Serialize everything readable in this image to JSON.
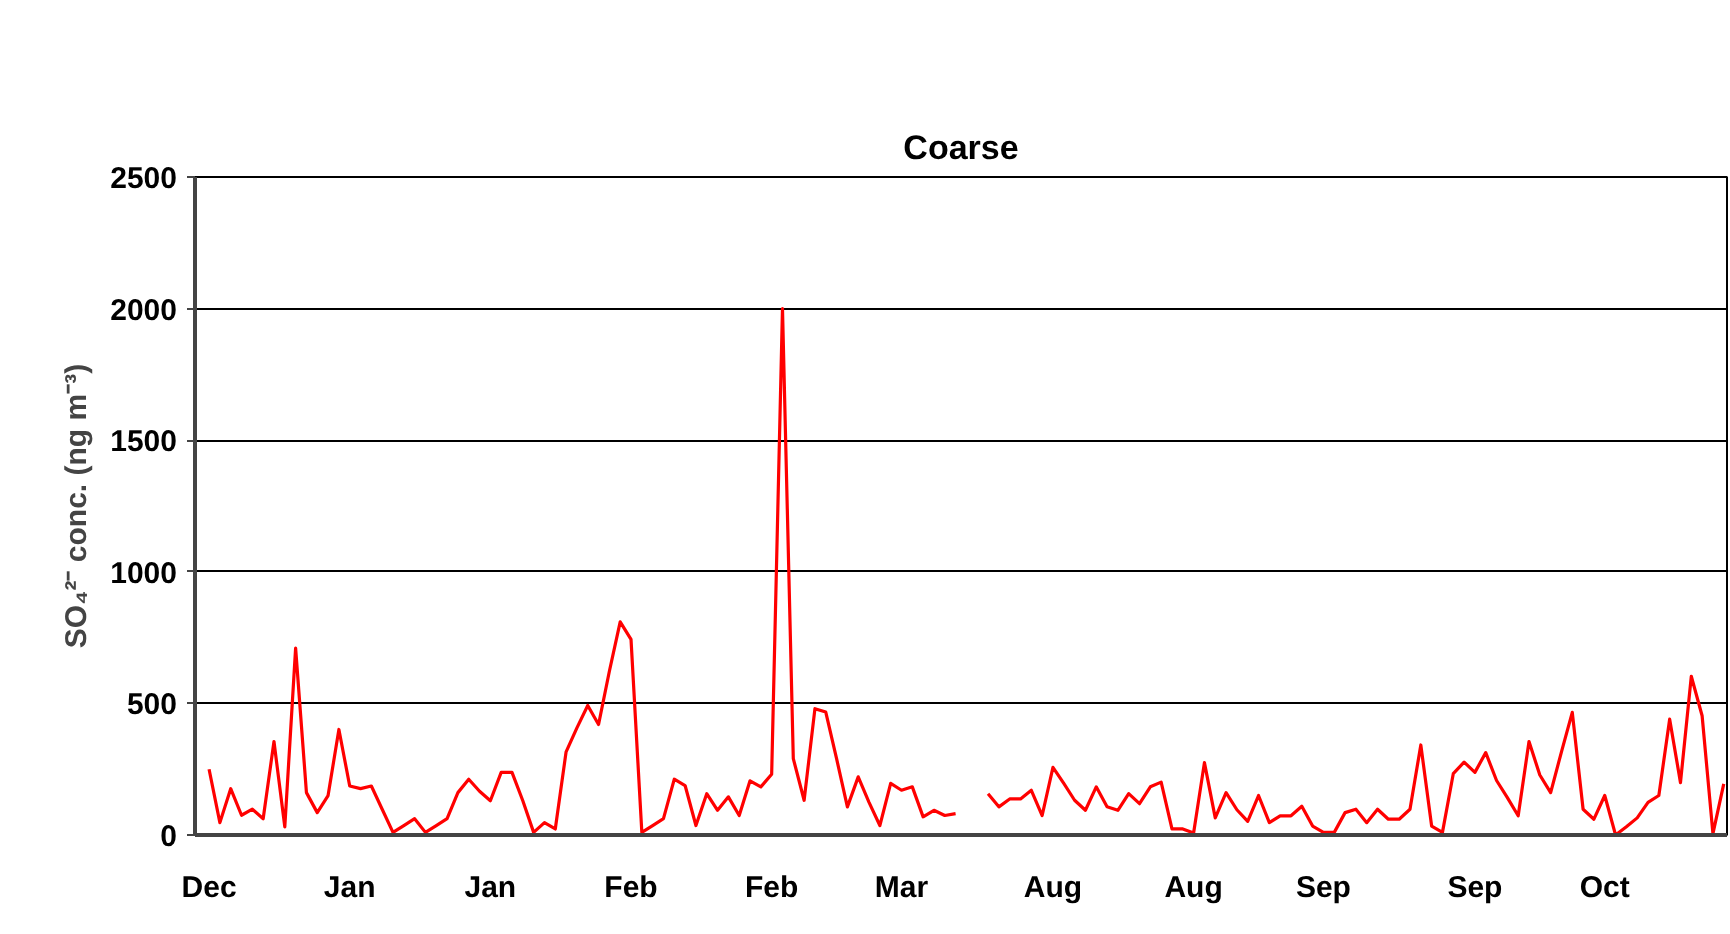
{
  "chart_data": {
    "type": "line",
    "title": "Coarse",
    "ylabel": "SO₄²⁻ conc. (ng m⁻³)",
    "categories": [
      "Dec",
      null,
      null,
      null,
      null,
      null,
      null,
      null,
      null,
      null,
      null,
      null,
      null,
      "Jan",
      null,
      null,
      null,
      null,
      null,
      null,
      null,
      null,
      null,
      null,
      null,
      null,
      "Jan",
      null,
      null,
      null,
      null,
      null,
      null,
      null,
      null,
      null,
      null,
      null,
      null,
      "Feb",
      null,
      null,
      null,
      null,
      null,
      null,
      null,
      null,
      null,
      null,
      null,
      null,
      "Feb",
      null,
      null,
      null,
      null,
      null,
      null,
      null,
      null,
      null,
      null,
      null,
      "Mar",
      null,
      null,
      null,
      null,
      null,
      null,
      null,
      null,
      null,
      null,
      null,
      null,
      null,
      "Aug",
      null,
      null,
      null,
      null,
      null,
      null,
      null,
      null,
      null,
      null,
      null,
      null,
      "Aug",
      null,
      null,
      null,
      null,
      null,
      null,
      null,
      null,
      null,
      null,
      null,
      "Sep",
      null,
      null,
      null,
      null,
      null,
      null,
      null,
      null,
      null,
      null,
      null,
      null,
      null,
      "Sep",
      null,
      null,
      null,
      null,
      null,
      null,
      null,
      null,
      null,
      null,
      null,
      "Oct",
      null,
      null,
      null,
      null,
      null,
      null,
      null,
      null,
      null,
      null,
      null
    ],
    "series": [
      {
        "color": "#ff0000",
        "values": [
          250,
          47,
          176,
          75,
          98,
          62,
          355,
          31,
          710,
          161,
          85,
          150,
          401,
          186,
          176,
          186,
          98,
          10,
          36,
          62,
          10,
          36,
          62,
          161,
          212,
          166,
          130,
          238,
          238,
          130,
          10,
          47,
          23,
          316,
          407,
          492,
          420,
          622,
          810,
          743,
          10,
          36,
          62,
          212,
          188,
          36,
          157,
          94,
          145,
          74,
          206,
          183,
          231,
          2000,
          290,
          132,
          480,
          467,
          290,
          107,
          221,
          124,
          36,
          196,
          170,
          183,
          69,
          94,
          74,
          81,
          null,
          null,
          157,
          107,
          137,
          137,
          170,
          74,
          257,
          196,
          132,
          94,
          183,
          107,
          94,
          157,
          119,
          183,
          201,
          23,
          23,
          8,
          275,
          65,
          161,
          96,
          52,
          150,
          47,
          73,
          73,
          109,
          34,
          10,
          10,
          85,
          98,
          47,
          98,
          60,
          60,
          98,
          342,
          34,
          10,
          233,
          277,
          238,
          313,
          207,
          142,
          73,
          355,
          228,
          161,
          316,
          466,
          98,
          60,
          150,
          0,
          31,
          65,
          124,
          150,
          440,
          199,
          603,
          453,
          5,
          194
        ]
      }
    ],
    "ylim": [
      0,
      2500
    ],
    "yticks": [
      0,
      500,
      1000,
      1500,
      2000,
      2500
    ],
    "grid": "y",
    "marker": "none",
    "line_style": "solid"
  }
}
